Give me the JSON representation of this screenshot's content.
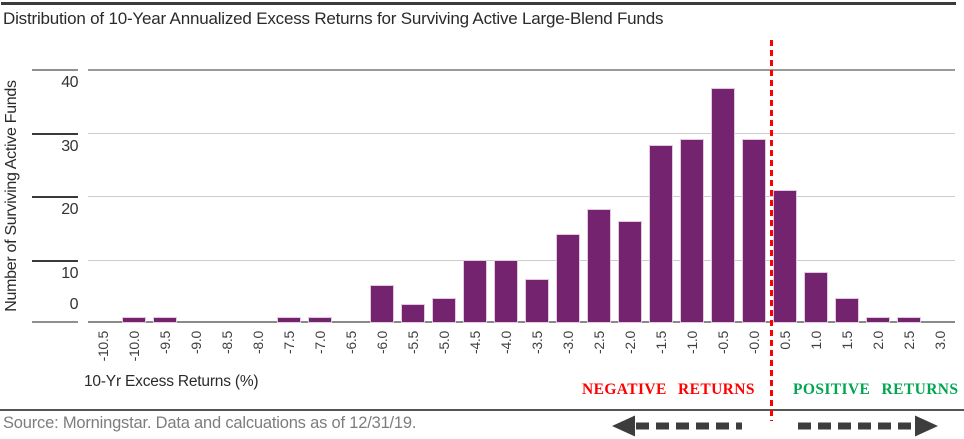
{
  "header": {
    "title": "Distribution of 10-Year Annualized Excess Returns for Surviving Active Large-Blend Funds"
  },
  "footer": {
    "source": "Source: Morningstar. Data and calcuations as of 12/31/19."
  },
  "chart_data": {
    "type": "bar",
    "title": "Distribution of 10-Year Annualized Excess Returns for Surviving Active Large-Blend Funds",
    "xlabel": "10-Yr Excess Returns (%)",
    "ylabel": "Number of Surviving Active Funds",
    "ylim": [
      0,
      40
    ],
    "yticks": [
      0,
      10,
      20,
      30,
      40
    ],
    "grid": true,
    "legend": "none",
    "categories": [
      "-10.5",
      "-10.0",
      "-9.5",
      "-9.0",
      "-8.5",
      "-8.0",
      "-7.5",
      "-7.0",
      "-6.5",
      "-6.0",
      "-5.5",
      "-5.0",
      "-4.5",
      "-4.0",
      "-3.5",
      "-3.0",
      "-2.5",
      "-2.0",
      "-1.5",
      "-1.0",
      "-0.5",
      "-0.0",
      "0.5",
      "1.0",
      "1.5",
      "2.0",
      "2.5",
      "3.0"
    ],
    "values": [
      0,
      1,
      1,
      0,
      0,
      0,
      1,
      1,
      0,
      6,
      3,
      4,
      10,
      10,
      7,
      14,
      18,
      16,
      28,
      29,
      37,
      29,
      21,
      8,
      4,
      1,
      1,
      0
    ],
    "bar_color": "#74236F",
    "divider": {
      "between_categories": [
        "-0.0",
        "0.5"
      ],
      "style": "dashed",
      "color": "#FF0000"
    },
    "annotations": [
      {
        "id": "negative",
        "text": "NEGATIVE RETURNS",
        "color": "#FF0000",
        "arrow_direction": "left"
      },
      {
        "id": "positive",
        "text": "POSITIVE RETURNS",
        "color": "#00A651",
        "arrow_direction": "right"
      }
    ],
    "arrow_color": "#3D3D3D"
  }
}
